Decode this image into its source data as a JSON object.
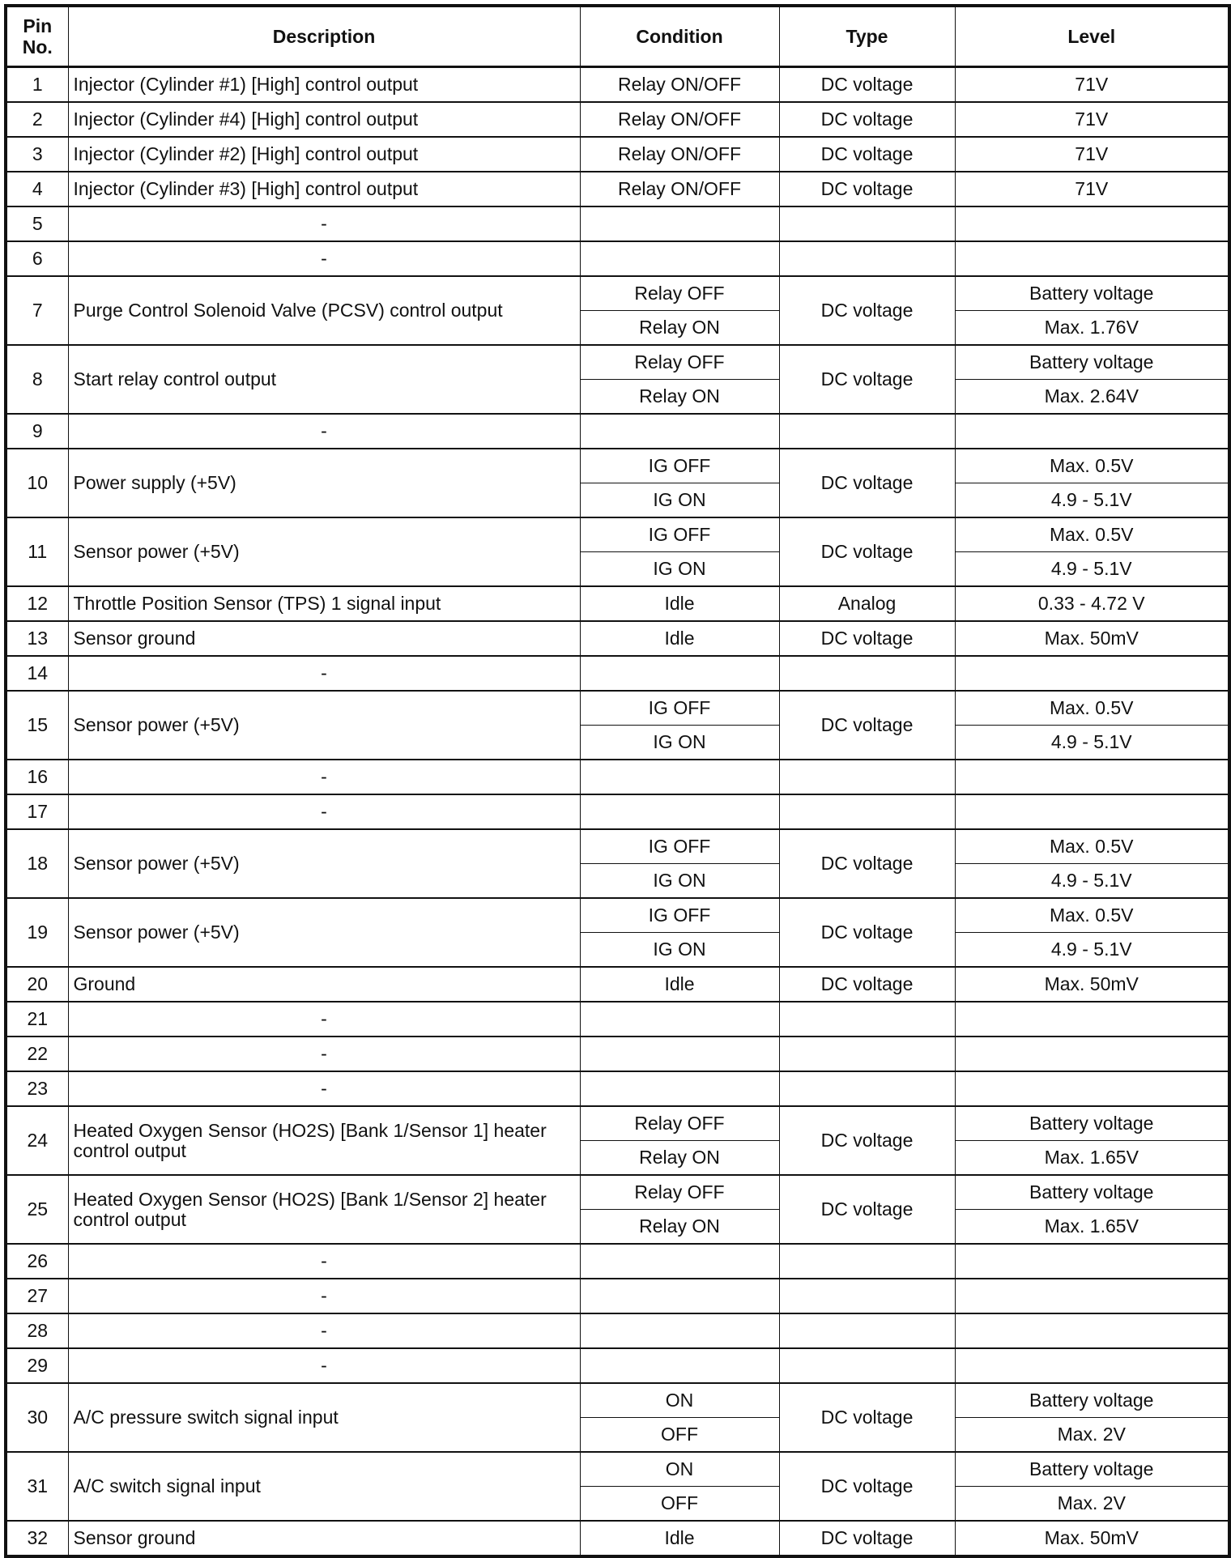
{
  "headers": {
    "pin": "Pin No.",
    "description": "Description",
    "condition": "Condition",
    "type": "Type",
    "level": "Level"
  },
  "rows": [
    {
      "pin": "1",
      "description": "Injector (Cylinder #1) [High] control output",
      "type": "DC voltage",
      "states": [
        {
          "condition": "Relay ON/OFF",
          "level": "71V"
        }
      ]
    },
    {
      "pin": "2",
      "description": "Injector (Cylinder #4) [High] control output",
      "type": "DC voltage",
      "states": [
        {
          "condition": "Relay ON/OFF",
          "level": "71V"
        }
      ]
    },
    {
      "pin": "3",
      "description": "Injector (Cylinder #2) [High] control output",
      "type": "DC voltage",
      "states": [
        {
          "condition": "Relay ON/OFF",
          "level": "71V"
        }
      ]
    },
    {
      "pin": "4",
      "description": "Injector (Cylinder #3) [High] control output",
      "type": "DC voltage",
      "states": [
        {
          "condition": "Relay ON/OFF",
          "level": "71V"
        }
      ]
    },
    {
      "pin": "5",
      "description": "-",
      "type": "",
      "states": [
        {
          "condition": "",
          "level": ""
        }
      ]
    },
    {
      "pin": "6",
      "description": "-",
      "type": "",
      "states": [
        {
          "condition": "",
          "level": ""
        }
      ]
    },
    {
      "pin": "7",
      "description": "Purge Control Solenoid Valve (PCSV) control output",
      "type": "DC voltage",
      "states": [
        {
          "condition": "Relay OFF",
          "level": "Battery voltage"
        },
        {
          "condition": "Relay ON",
          "level": "Max. 1.76V"
        }
      ]
    },
    {
      "pin": "8",
      "description": "Start relay control output",
      "type": "DC voltage",
      "states": [
        {
          "condition": "Relay OFF",
          "level": "Battery voltage"
        },
        {
          "condition": "Relay ON",
          "level": "Max. 2.64V"
        }
      ]
    },
    {
      "pin": "9",
      "description": "-",
      "type": "",
      "states": [
        {
          "condition": "",
          "level": ""
        }
      ]
    },
    {
      "pin": "10",
      "description": "Power supply (+5V)",
      "type": "DC voltage",
      "states": [
        {
          "condition": "IG OFF",
          "level": "Max. 0.5V"
        },
        {
          "condition": "IG ON",
          "level": "4.9 - 5.1V"
        }
      ]
    },
    {
      "pin": "11",
      "description": "Sensor power (+5V)",
      "type": "DC voltage",
      "states": [
        {
          "condition": "IG OFF",
          "level": "Max. 0.5V"
        },
        {
          "condition": "IG ON",
          "level": "4.9 - 5.1V"
        }
      ]
    },
    {
      "pin": "12",
      "description": "Throttle Position Sensor (TPS) 1 signal input",
      "type": "Analog",
      "states": [
        {
          "condition": "Idle",
          "level": "0.33 - 4.72 V"
        }
      ]
    },
    {
      "pin": "13",
      "description": "Sensor ground",
      "type": "DC voltage",
      "states": [
        {
          "condition": "Idle",
          "level": "Max. 50mV"
        }
      ]
    },
    {
      "pin": "14",
      "description": "-",
      "type": "",
      "states": [
        {
          "condition": "",
          "level": ""
        }
      ]
    },
    {
      "pin": "15",
      "description": "Sensor power (+5V)",
      "type": "DC voltage",
      "states": [
        {
          "condition": "IG OFF",
          "level": "Max. 0.5V"
        },
        {
          "condition": "IG ON",
          "level": "4.9 - 5.1V"
        }
      ]
    },
    {
      "pin": "16",
      "description": "-",
      "type": "",
      "states": [
        {
          "condition": "",
          "level": ""
        }
      ]
    },
    {
      "pin": "17",
      "description": "-",
      "type": "",
      "states": [
        {
          "condition": "",
          "level": ""
        }
      ]
    },
    {
      "pin": "18",
      "description": "Sensor power (+5V)",
      "type": "DC voltage",
      "states": [
        {
          "condition": "IG OFF",
          "level": "Max. 0.5V"
        },
        {
          "condition": "IG ON",
          "level": "4.9 - 5.1V"
        }
      ]
    },
    {
      "pin": "19",
      "description": "Sensor power (+5V)",
      "type": "DC voltage",
      "states": [
        {
          "condition": "IG OFF",
          "level": "Max. 0.5V"
        },
        {
          "condition": "IG ON",
          "level": "4.9 - 5.1V"
        }
      ]
    },
    {
      "pin": "20",
      "description": "Ground",
      "type": "DC voltage",
      "states": [
        {
          "condition": "Idle",
          "level": "Max. 50mV"
        }
      ]
    },
    {
      "pin": "21",
      "description": "-",
      "type": "",
      "states": [
        {
          "condition": "",
          "level": ""
        }
      ]
    },
    {
      "pin": "22",
      "description": "-",
      "type": "",
      "states": [
        {
          "condition": "",
          "level": ""
        }
      ]
    },
    {
      "pin": "23",
      "description": "-",
      "type": "",
      "states": [
        {
          "condition": "",
          "level": ""
        }
      ]
    },
    {
      "pin": "24",
      "description": "Heated Oxygen Sensor (HO2S) [Bank 1/Sensor 1] heater control output",
      "type": "DC voltage",
      "states": [
        {
          "condition": "Relay OFF",
          "level": "Battery voltage"
        },
        {
          "condition": "Relay ON",
          "level": "Max. 1.65V"
        }
      ]
    },
    {
      "pin": "25",
      "description": "Heated Oxygen Sensor (HO2S) [Bank 1/Sensor 2] heater control output",
      "type": "DC voltage",
      "states": [
        {
          "condition": "Relay OFF",
          "level": "Battery voltage"
        },
        {
          "condition": "Relay ON",
          "level": "Max. 1.65V"
        }
      ]
    },
    {
      "pin": "26",
      "description": "-",
      "type": "",
      "states": [
        {
          "condition": "",
          "level": ""
        }
      ]
    },
    {
      "pin": "27",
      "description": "-",
      "type": "",
      "states": [
        {
          "condition": "",
          "level": ""
        }
      ]
    },
    {
      "pin": "28",
      "description": "-",
      "type": "",
      "states": [
        {
          "condition": "",
          "level": ""
        }
      ]
    },
    {
      "pin": "29",
      "description": "-",
      "type": "",
      "states": [
        {
          "condition": "",
          "level": ""
        }
      ]
    },
    {
      "pin": "30",
      "description": "A/C pressure switch signal input",
      "type": "DC voltage",
      "states": [
        {
          "condition": "ON",
          "level": "Battery voltage"
        },
        {
          "condition": "OFF",
          "level": "Max. 2V"
        }
      ]
    },
    {
      "pin": "31",
      "description": "A/C switch signal input",
      "type": "DC voltage",
      "states": [
        {
          "condition": "ON",
          "level": "Battery voltage"
        },
        {
          "condition": "OFF",
          "level": "Max. 2V"
        }
      ]
    },
    {
      "pin": "32",
      "description": "Sensor ground",
      "type": "DC voltage",
      "states": [
        {
          "condition": "Idle",
          "level": "Max. 50mV"
        }
      ]
    }
  ]
}
